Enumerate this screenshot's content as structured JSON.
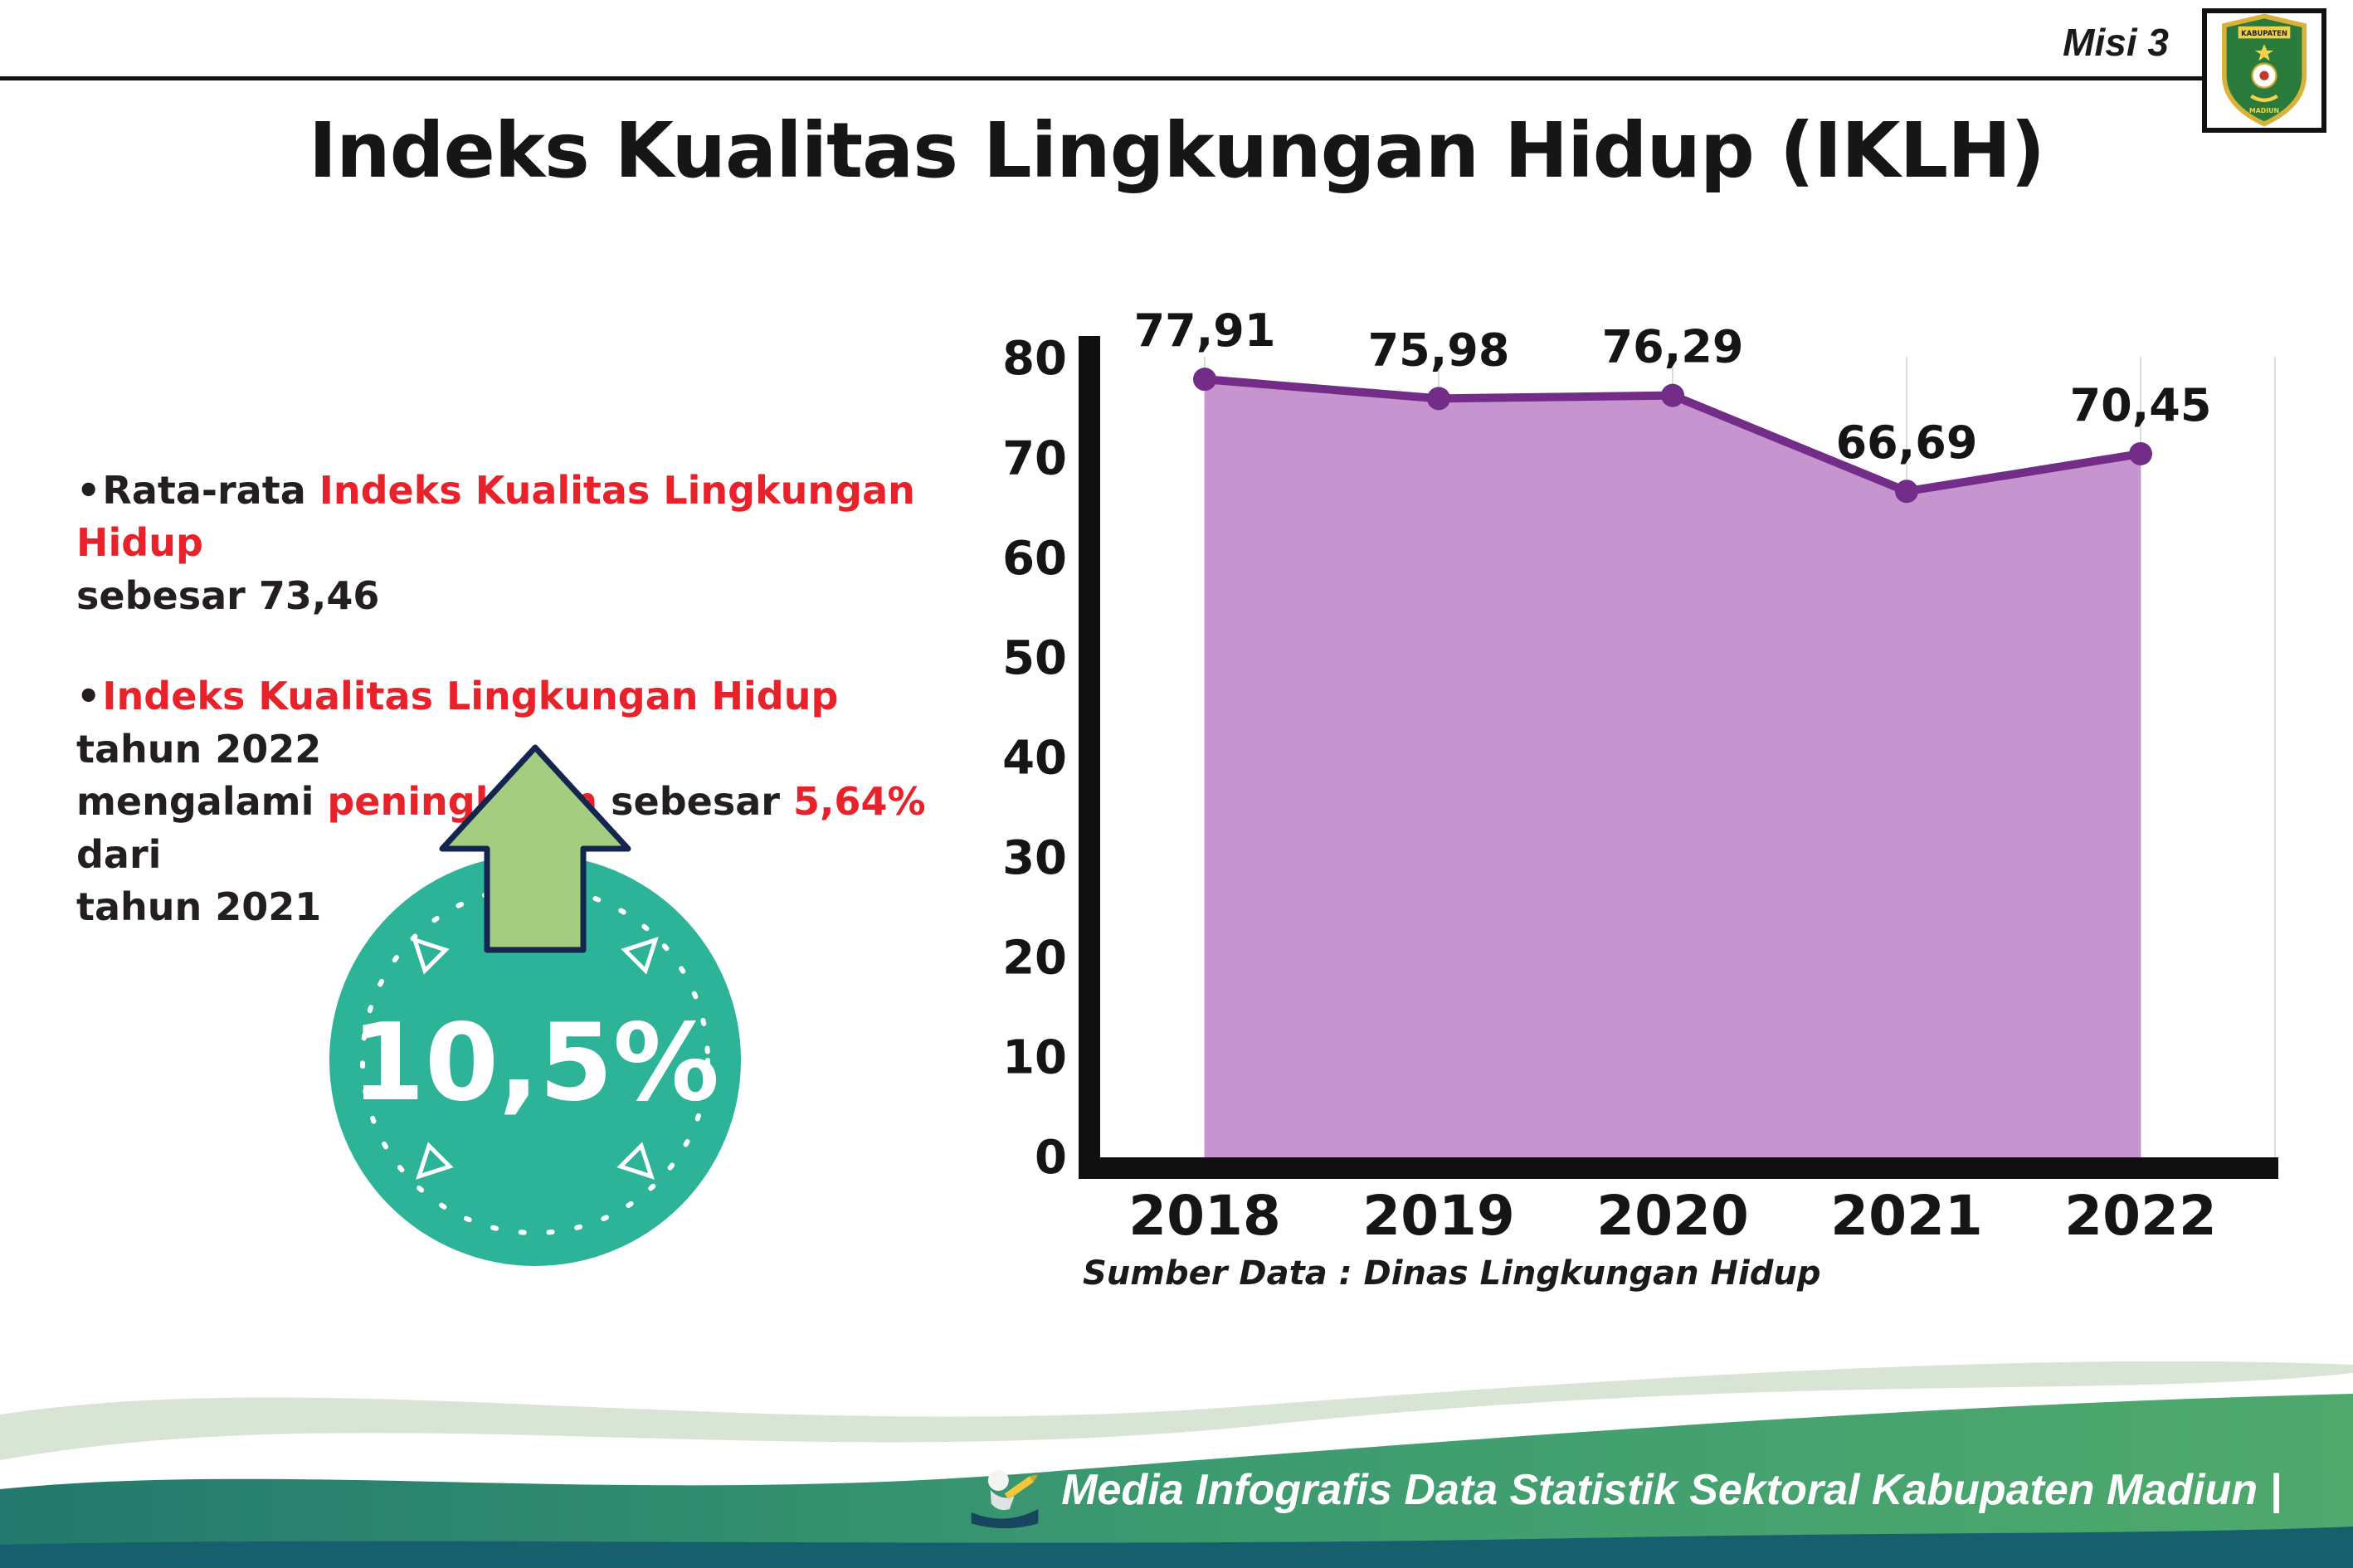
{
  "header": {
    "misi": "Misi 3",
    "title": "Indeks Kualitas Lingkungan Hidup (IKLH)"
  },
  "logo": {
    "top": "KABUPATEN",
    "bottom": "MADIUN"
  },
  "bullets": {
    "marker": "•",
    "b1": {
      "p1": "Rata-rata ",
      "p2": "Indeks Kualitas Lingkungan Hidup",
      "p3": "sebesar 73,46"
    },
    "b2": {
      "p1": "Indeks Kualitas Lingkungan Hidup",
      "p2": " tahun 2022",
      "p3": "mengalami ",
      "p4": "peningkatan",
      "p5": " sebesar ",
      "p6": "5,64%",
      "p7": " dari",
      "p8": "tahun 2021"
    }
  },
  "badge": {
    "value": "10,5%"
  },
  "chart_data": {
    "type": "area",
    "categories": [
      "2018",
      "2019",
      "2020",
      "2021",
      "2022"
    ],
    "values": [
      77.91,
      75.98,
      76.29,
      66.69,
      70.45
    ],
    "value_labels": [
      "77,91",
      "75,98",
      "76,29",
      "66,69",
      "70,45"
    ],
    "ylim": [
      0,
      80
    ],
    "y_ticks": [
      0,
      10,
      20,
      30,
      40,
      50,
      60,
      70,
      80
    ],
    "title": "",
    "xlabel": "",
    "ylabel": "",
    "grid": "faint vertical lines at each year",
    "legend": "none",
    "source": "Sumber Data : Dinas Lingkungan Hidup",
    "colors": {
      "area": "#c694ce",
      "line": "#732c88",
      "dot": "#732c88"
    }
  },
  "footer": {
    "credit": "Media Infografis Data Statistik Sektoral Kabupaten Madiun |"
  }
}
